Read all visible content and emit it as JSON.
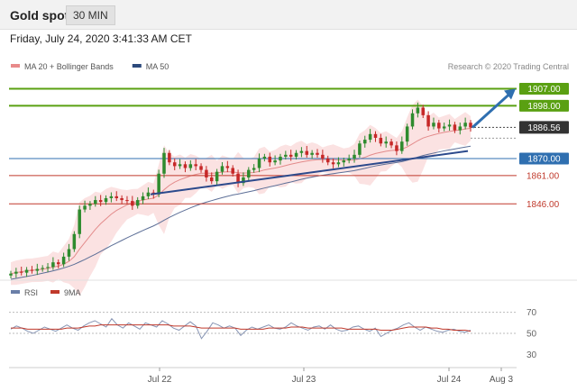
{
  "header": {
    "title": "Gold spot",
    "timeframe": "30 MIN",
    "datetime": "Friday, July 24, 2020 3:41:33 AM CET"
  },
  "price_panel": {
    "legend": [
      {
        "label": "MA 20 + Bollinger Bands",
        "color": "#e88a8a"
      },
      {
        "label": "MA 50",
        "color": "#2c4a7c"
      }
    ],
    "credit": "Research © 2020 Trading Central"
  },
  "rsi_panel": {
    "legend": [
      {
        "label": "RSI",
        "color": "#6a7fa8"
      },
      {
        "label": "9MA",
        "color": "#c0392b"
      }
    ]
  },
  "chart_data": [
    {
      "type": "candlestick",
      "y_range": [
        1806,
        1913
      ],
      "current_price": "1886.56",
      "levels": [
        {
          "value": 1907.0,
          "label": "1907.00",
          "kind": "target",
          "color": "#5aa012"
        },
        {
          "value": 1898.0,
          "label": "1898.00",
          "kind": "resistance",
          "color": "#5aa012"
        },
        {
          "value": 1870.0,
          "label": "1870.00",
          "kind": "pivot",
          "color": "#2f6fb0"
        },
        {
          "value": 1861.0,
          "label": "1861.00",
          "kind": "support",
          "color": "#c0392b"
        },
        {
          "value": 1846.0,
          "label": "1846.00",
          "kind": "support",
          "color": "#c0392b"
        }
      ],
      "x_ticks": [
        "Jul 22",
        "Jul 23",
        "Jul 24",
        "Aug 3"
      ],
      "close_path": [
        1809.0,
        1810.0,
        1809.5,
        1811.0,
        1810.5,
        1811.5,
        1812.0,
        1812.5,
        1815.0,
        1814.0,
        1818.0,
        1822.0,
        1830.0,
        1843.0,
        1845.0,
        1846.0,
        1848.0,
        1847.0,
        1849.0,
        1850.0,
        1849.0,
        1848.0,
        1847.5,
        1845.0,
        1848.0,
        1850.0,
        1852.0,
        1851.0,
        1862.0,
        1873.0,
        1868.0,
        1866.0,
        1867.0,
        1865.0,
        1867.0,
        1866.0,
        1864.0,
        1860.0,
        1858.0,
        1863.0,
        1866.0,
        1865.0,
        1862.0,
        1857.0,
        1860.0,
        1864.0,
        1865.0,
        1870.0,
        1871.0,
        1868.0,
        1869.0,
        1871.0,
        1872.0,
        1871.0,
        1873.0,
        1874.0,
        1872.0,
        1873.0,
        1872.0,
        1870.0,
        1868.0,
        1867.0,
        1868.0,
        1869.0,
        1870.0,
        1872.0,
        1878.0,
        1880.0,
        1883.0,
        1881.0,
        1878.0,
        1879.0,
        1877.0,
        1874.0,
        1879.0,
        1887.0,
        1894.0,
        1897.0,
        1893.0,
        1887.0,
        1889.0,
        1886.0,
        1887.0,
        1888.0,
        1885.0,
        1887.0,
        1889.0,
        1886.5
      ],
      "ma20_path": [
        1809.0,
        1809.5,
        1810.0,
        1810.5,
        1810.8,
        1811.0,
        1811.3,
        1811.8,
        1812.5,
        1813.0,
        1814.0,
        1815.5,
        1818.0,
        1822.0,
        1825.5,
        1829.0,
        1832.5,
        1835.5,
        1838.0,
        1840.5,
        1842.5,
        1844.0,
        1845.5,
        1846.5,
        1847.3,
        1848.0,
        1848.6,
        1849.0,
        1850.8,
        1853.5,
        1855.8,
        1857.5,
        1858.8,
        1859.8,
        1860.8,
        1861.6,
        1862.2,
        1862.3,
        1862.2,
        1862.4,
        1862.8,
        1863.0,
        1862.9,
        1862.5,
        1862.3,
        1862.4,
        1862.6,
        1863.2,
        1864.0,
        1864.5,
        1865.0,
        1865.6,
        1866.3,
        1867.0,
        1867.6,
        1868.2,
        1868.7,
        1869.1,
        1869.4,
        1869.5,
        1869.5,
        1869.4,
        1869.3,
        1869.2,
        1869.2,
        1869.3,
        1869.9,
        1870.7,
        1871.8,
        1872.7,
        1873.3,
        1873.9,
        1874.3,
        1874.5,
        1875.0,
        1876.2,
        1877.8,
        1879.5,
        1880.9,
        1881.8,
        1882.6,
        1883.3,
        1883.9,
        1884.4,
        1884.8,
        1885.2,
        1885.7,
        1886.0
      ],
      "ma50_path": [
        1806.0,
        1806.5,
        1807.0,
        1807.5,
        1808.0,
        1808.6,
        1809.2,
        1809.8,
        1810.5,
        1811.2,
        1812.0,
        1812.9,
        1813.9,
        1815.2,
        1816.5,
        1817.9,
        1819.3,
        1820.8,
        1822.3,
        1823.8,
        1825.2,
        1826.6,
        1828.0,
        1829.3,
        1830.6,
        1831.9,
        1833.1,
        1834.3,
        1835.7,
        1837.3,
        1838.8,
        1840.2,
        1841.5,
        1842.7,
        1843.9,
        1845.0,
        1846.0,
        1846.9,
        1847.7,
        1848.5,
        1849.3,
        1850.0,
        1850.7,
        1851.2,
        1851.8,
        1852.4,
        1853.0,
        1853.7,
        1854.4,
        1855.0,
        1855.6,
        1856.3,
        1857.0,
        1857.6,
        1858.3,
        1859.0,
        1859.6,
        1860.2,
        1860.7,
        1861.2,
        1861.6,
        1862.0,
        1862.4,
        1862.8,
        1863.2,
        1863.6,
        1864.2,
        1864.8,
        1865.5,
        1866.1,
        1866.6,
        1867.1,
        1867.5,
        1867.9,
        1868.4,
        1869.1,
        1869.9,
        1870.8,
        1871.6,
        1872.3,
        1872.9,
        1873.5,
        1874.1,
        1874.6,
        1875.1,
        1875.6,
        1876.1,
        1876.6
      ],
      "trendline": {
        "from": 1851.0,
        "to": 1874.0
      },
      "forecast_arrow": {
        "from": 1886.5,
        "to": 1907.0
      }
    },
    {
      "type": "line",
      "y_range": [
        20,
        80
      ],
      "y_ticks": [
        70,
        50,
        30
      ],
      "x_ticks": [
        "Jul 22",
        "Jul 23",
        "Jul 24",
        "Aug 3"
      ],
      "series": [
        {
          "name": "RSI",
          "values": [
            54,
            57,
            55,
            52,
            50,
            53,
            56,
            54,
            52,
            55,
            58,
            55,
            53,
            57,
            60,
            62,
            59,
            56,
            64,
            58,
            55,
            60,
            57,
            54,
            60,
            58,
            56,
            62,
            59,
            55,
            53,
            57,
            61,
            57,
            45,
            52,
            60,
            58,
            55,
            57,
            55,
            48,
            53,
            56,
            54,
            56,
            58,
            55,
            54,
            56,
            60,
            57,
            55,
            53,
            56,
            57,
            54,
            58,
            54,
            52,
            53,
            56,
            57,
            54,
            52,
            55,
            47,
            50,
            53,
            55,
            58,
            60,
            56,
            53,
            56,
            54,
            52,
            51,
            53,
            54,
            52,
            51,
            53
          ]
        },
        {
          "name": "9MA",
          "values": [
            55,
            55,
            55,
            54,
            54,
            54,
            54,
            54,
            54,
            54,
            55,
            55,
            55,
            56,
            57,
            57,
            58,
            58,
            58,
            58,
            58,
            58,
            58,
            58,
            58,
            58,
            58,
            58,
            58,
            57,
            57,
            57,
            57,
            56,
            55,
            55,
            55,
            55,
            55,
            55,
            55,
            54,
            54,
            54,
            54,
            54,
            55,
            55,
            55,
            55,
            56,
            56,
            56,
            55,
            55,
            55,
            55,
            55,
            55,
            55,
            54,
            54,
            54,
            54,
            54,
            54,
            53,
            53,
            53,
            54,
            55,
            56,
            56,
            56,
            56,
            55,
            55,
            54,
            54,
            53,
            53,
            53,
            52
          ]
        }
      ]
    }
  ]
}
